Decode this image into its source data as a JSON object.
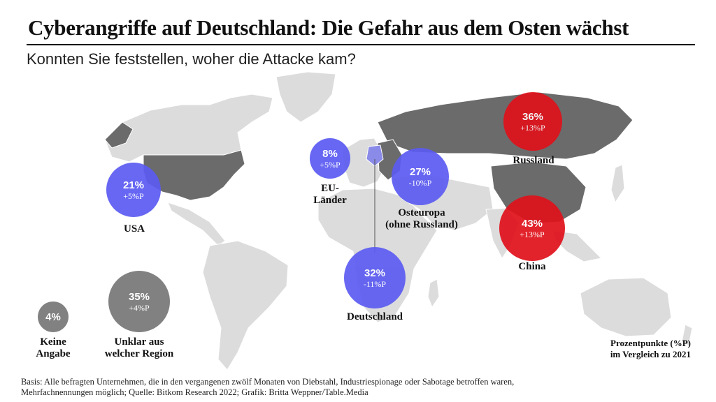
{
  "title": "Cyberangriffe auf Deutschland: Die Gefahr aus dem Osten wächst",
  "subtitle": "Konnten Sie feststellen, woher die Attacke kam?",
  "regions": [
    {
      "id": "usa",
      "name": "USA",
      "percent": "21%",
      "change": "+5%P",
      "color": "#5b5bf2"
    },
    {
      "id": "eu",
      "name": "EU-Länder",
      "name_lines": [
        "EU-",
        "Länder"
      ],
      "percent": "8%",
      "change": "+5%P",
      "color": "#5b5bf2"
    },
    {
      "id": "osteuropa",
      "name": "Osteuropa (ohne Russland)",
      "name_lines": [
        "Osteuropa",
        "(ohne Russland)"
      ],
      "percent": "27%",
      "change": "-10%P",
      "color": "#5b5bf2"
    },
    {
      "id": "deutschland",
      "name": "Deutschland",
      "percent": "32%",
      "change": "-11%P",
      "color": "#5b5bf2"
    },
    {
      "id": "russland",
      "name": "Russland",
      "percent": "36%",
      "change": "+13%P",
      "color": "#e0111b"
    },
    {
      "id": "china",
      "name": "China",
      "percent": "43%",
      "change": "+13%P",
      "color": "#e0111b"
    },
    {
      "id": "unklar",
      "name": "Unklar aus welcher Region",
      "name_lines": [
        "Unklar aus",
        "welcher Region"
      ],
      "percent": "35%",
      "change": "+4%P",
      "color": "#777777"
    },
    {
      "id": "keine",
      "name": "Keine Angabe",
      "name_lines": [
        "Keine",
        "Angabe"
      ],
      "percent": "4%",
      "change": "",
      "color": "#777777"
    }
  ],
  "legend_note": [
    "Prozentpunkte (%P)",
    "im Vergleich zu 2021"
  ],
  "footer": [
    "Basis: Alle befragten Unternehmen, die in den vergangenen zwölf Monaten von Diebstahl, Industriespionage oder Sabotage betroffen waren,",
    "Mehrfachnennungen möglich; Quelle: Bitkom Research 2022; Grafik: Britta Weppner/Table.Media"
  ],
  "colors": {
    "land": "#dcdcdc",
    "highlight": "#6b6b6b",
    "germany": "#8a8ae8",
    "accent_blue": "#5b5bf2",
    "accent_red": "#e0111b",
    "neutral": "#777777"
  }
}
